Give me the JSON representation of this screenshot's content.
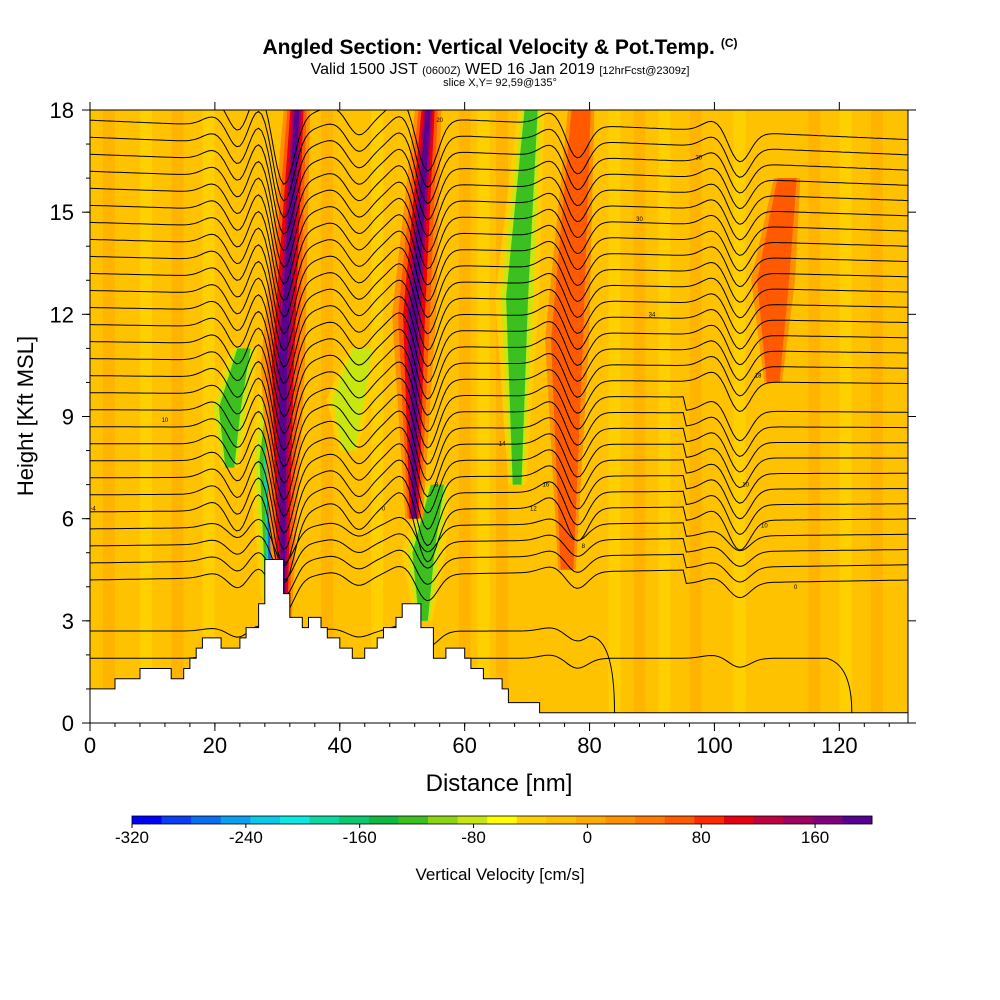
{
  "title": {
    "main": "Angled Section: Vertical Velocity & Pot.Temp.",
    "main_tag": "(C)",
    "valid_prefix": "Valid 1500 JST",
    "valid_utc": "(0600Z)",
    "valid_date": "WED 16 Jan 2019",
    "forecast_tag": "[12hrFcst@2309z]",
    "slice": "slice X,Y= 92,59@135°"
  },
  "chart_data": {
    "type": "heatmap",
    "xlabel": "Distance [nm]",
    "ylabel": "Height [Kft MSL]",
    "xlim": [
      0,
      131
    ],
    "ylim": [
      0,
      18
    ],
    "xticks": [
      0,
      20,
      40,
      60,
      80,
      100,
      120
    ],
    "yticks": [
      0,
      3,
      6,
      9,
      12,
      15,
      18
    ],
    "colorbar": {
      "label": "Vertical Velocity [cm/s]",
      "range": [
        -320,
        200
      ],
      "ticks": [
        -320,
        -240,
        -160,
        -80,
        0,
        80,
        160
      ],
      "colors": [
        "#0000ff",
        "#0a3ef5",
        "#0a6fee",
        "#0aa0ee",
        "#0ac8e8",
        "#0ae8e0",
        "#0ad8a0",
        "#0ac870",
        "#10b840",
        "#3cc020",
        "#8cd410",
        "#c8e610",
        "#ffff00",
        "#ffd000",
        "#ffc000",
        "#ffaa00",
        "#ff9000",
        "#ff7800",
        "#ff5a00",
        "#ff2a00",
        "#e80010",
        "#c00040",
        "#a00060",
        "#800080",
        "#580090"
      ]
    },
    "terrain_kft": [
      [
        0,
        1.0
      ],
      [
        4,
        1.0
      ],
      [
        4,
        1.3
      ],
      [
        8,
        1.3
      ],
      [
        8,
        1.6
      ],
      [
        13,
        1.6
      ],
      [
        13,
        1.3
      ],
      [
        15,
        1.3
      ],
      [
        15,
        1.6
      ],
      [
        16,
        1.6
      ],
      [
        16,
        1.9
      ],
      [
        17,
        1.9
      ],
      [
        17,
        2.2
      ],
      [
        18,
        2.2
      ],
      [
        18,
        2.5
      ],
      [
        21,
        2.5
      ],
      [
        21,
        2.2
      ],
      [
        24,
        2.2
      ],
      [
        24,
        2.5
      ],
      [
        25,
        2.5
      ],
      [
        25,
        2.8
      ],
      [
        27,
        2.8
      ],
      [
        27,
        3.5
      ],
      [
        28,
        3.5
      ],
      [
        28,
        4.8
      ],
      [
        31,
        4.8
      ],
      [
        31,
        3.8
      ],
      [
        32,
        3.8
      ],
      [
        32,
        3.1
      ],
      [
        34,
        3.1
      ],
      [
        34,
        2.8
      ],
      [
        35,
        2.8
      ],
      [
        35,
        3.1
      ],
      [
        37,
        3.1
      ],
      [
        37,
        2.8
      ],
      [
        38,
        2.8
      ],
      [
        38,
        2.5
      ],
      [
        40,
        2.5
      ],
      [
        40,
        2.2
      ],
      [
        42,
        2.2
      ],
      [
        42,
        1.9
      ],
      [
        44,
        1.9
      ],
      [
        44,
        2.2
      ],
      [
        46,
        2.2
      ],
      [
        46,
        2.5
      ],
      [
        47,
        2.5
      ],
      [
        47,
        2.8
      ],
      [
        49,
        2.8
      ],
      [
        49,
        3.1
      ],
      [
        50,
        3.1
      ],
      [
        50,
        3.5
      ],
      [
        53,
        3.5
      ],
      [
        53,
        2.8
      ],
      [
        55,
        2.8
      ],
      [
        55,
        1.9
      ],
      [
        57,
        1.9
      ],
      [
        57,
        2.2
      ],
      [
        60,
        2.2
      ],
      [
        60,
        1.9
      ],
      [
        61,
        1.9
      ],
      [
        61,
        1.6
      ],
      [
        63,
        1.6
      ],
      [
        63,
        1.3
      ],
      [
        66,
        1.3
      ],
      [
        66,
        1.0
      ],
      [
        67,
        1.0
      ],
      [
        67,
        0.6
      ],
      [
        72,
        0.6
      ],
      [
        72,
        0.3
      ],
      [
        131,
        0.3
      ]
    ],
    "updraft_bands": [
      {
        "x": 32.5,
        "y_top": 18,
        "y_bottom": 3.0,
        "peak_cm_s": 200
      },
      {
        "x": 53.5,
        "y_top": 18,
        "y_bottom": 6.0,
        "peak_cm_s": 180
      },
      {
        "x": 78,
        "y_top": 18,
        "y_bottom": 4.5,
        "peak_cm_s": 80
      },
      {
        "x": 111,
        "y_top": 16,
        "y_bottom": 10.0,
        "peak_cm_s": 60
      }
    ],
    "downdraft_bands": [
      {
        "x": 30.5,
        "y_top": 12,
        "y_bottom": 3.5,
        "peak_cm_s": -300
      },
      {
        "x": 55,
        "y_top": 7,
        "y_bottom": 3.0,
        "peak_cm_s": -160
      },
      {
        "x": 70,
        "y_top": 18,
        "y_bottom": 7.0,
        "peak_cm_s": -120
      },
      {
        "x": 24,
        "y_top": 11,
        "y_bottom": 7.5,
        "peak_cm_s": -130
      },
      {
        "x": 43,
        "y_top": 11,
        "y_bottom": 8.0,
        "peak_cm_s": -100
      }
    ],
    "isentrope_labels": [
      {
        "x": 0.5,
        "y": 6.3,
        "text": "-4"
      },
      {
        "x": 47,
        "y": 6.3,
        "text": "0"
      },
      {
        "x": 55.5,
        "y": 7.0,
        "text": "8"
      },
      {
        "x": 79,
        "y": 5.2,
        "text": "8"
      },
      {
        "x": 71,
        "y": 6.3,
        "text": "12"
      },
      {
        "x": 73,
        "y": 7.0,
        "text": "16"
      },
      {
        "x": 66,
        "y": 8.2,
        "text": "14"
      },
      {
        "x": 12,
        "y": 8.9,
        "text": "10"
      },
      {
        "x": 56,
        "y": 17.7,
        "text": "20"
      },
      {
        "x": 97.5,
        "y": 16.6,
        "text": "30"
      },
      {
        "x": 88,
        "y": 14.8,
        "text": "30"
      },
      {
        "x": 90,
        "y": 12.0,
        "text": "34"
      },
      {
        "x": 107,
        "y": 10.2,
        "text": "18"
      },
      {
        "x": 105,
        "y": 7.0,
        "text": "10"
      },
      {
        "x": 108,
        "y": 5.8,
        "text": "10"
      },
      {
        "x": 113,
        "y": 4.0,
        "text": "0"
      }
    ]
  }
}
